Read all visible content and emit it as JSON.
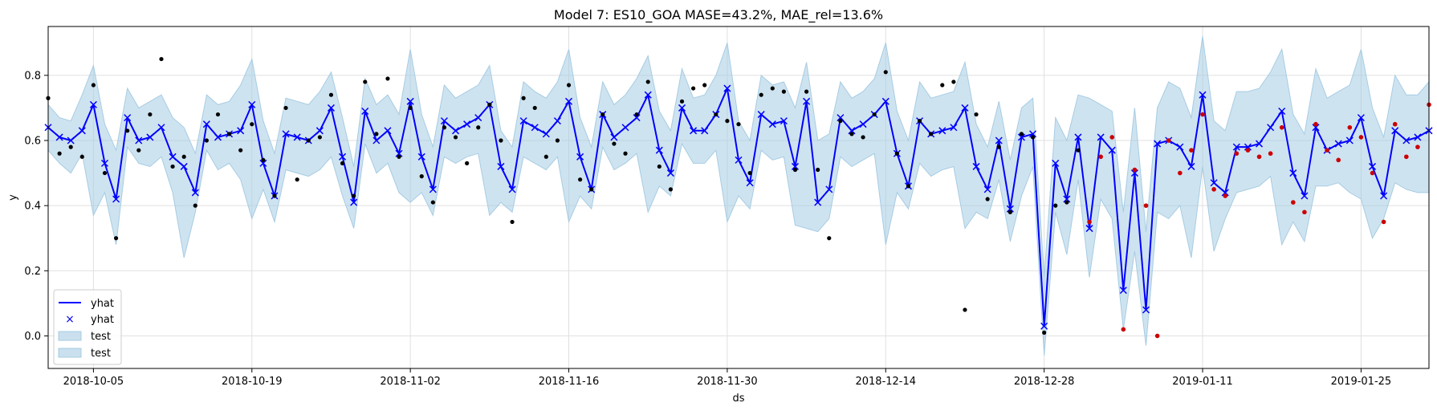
{
  "chart_data": {
    "type": "line",
    "title": "Model 7: ES10_GOA MASE=43.2%, MAE_rel=13.6%",
    "xlabel": "ds",
    "ylabel": "y",
    "x_range": [
      "2018-10-01",
      "2019-01-31"
    ],
    "ylim": [
      -0.1,
      0.95
    ],
    "x_ticks": [
      "2018-10-05",
      "2018-10-19",
      "2018-11-02",
      "2018-11-16",
      "2018-11-30",
      "2018-12-14",
      "2018-12-28",
      "2019-01-11",
      "2019-01-25"
    ],
    "y_ticks": [
      0.0,
      0.2,
      0.4,
      0.6,
      0.8
    ],
    "grid": true,
    "legend_position": "lower-left",
    "legend": [
      {
        "label": "yhat",
        "kind": "line"
      },
      {
        "label": "yhat",
        "kind": "marker"
      },
      {
        "label": "test",
        "kind": "band"
      },
      {
        "label": "test",
        "kind": "band"
      }
    ],
    "x_start": "2018-10-01",
    "yhat": [
      0.64,
      0.61,
      0.6,
      0.63,
      0.71,
      0.53,
      0.42,
      0.67,
      0.6,
      0.61,
      0.64,
      0.55,
      0.52,
      0.44,
      0.65,
      0.61,
      0.62,
      0.63,
      0.71,
      0.53,
      0.43,
      0.62,
      0.61,
      0.6,
      0.63,
      0.7,
      0.55,
      0.41,
      0.69,
      0.6,
      0.63,
      0.56,
      0.72,
      0.55,
      0.45,
      0.66,
      0.63,
      0.65,
      0.67,
      0.71,
      0.52,
      0.45,
      0.66,
      0.64,
      0.62,
      0.66,
      0.72,
      0.55,
      0.45,
      0.68,
      0.61,
      0.64,
      0.67,
      0.74,
      0.57,
      0.5,
      0.7,
      0.63,
      0.63,
      0.68,
      0.76,
      0.54,
      0.47,
      0.68,
      0.65,
      0.66,
      0.52,
      0.72,
      0.41,
      0.45,
      0.67,
      0.63,
      0.65,
      0.68,
      0.72,
      0.56,
      0.46,
      0.66,
      0.62,
      0.63,
      0.64,
      0.7,
      0.52,
      0.45,
      0.6,
      0.39,
      0.61,
      0.62,
      0.03,
      0.53,
      0.42,
      0.61,
      0.33,
      0.61,
      0.57,
      0.14,
      0.5,
      0.08,
      0.59,
      0.6,
      0.58,
      0.52,
      0.74,
      0.47,
      0.44,
      0.58,
      0.58,
      0.59,
      0.64,
      0.69,
      0.5,
      0.43,
      0.64,
      0.57,
      0.59,
      0.6,
      0.67,
      0.52,
      0.43,
      0.63,
      0.6,
      0.61,
      0.63
    ],
    "band_upper": [
      0.71,
      0.67,
      0.66,
      0.74,
      0.83,
      0.65,
      0.57,
      0.76,
      0.7,
      0.72,
      0.74,
      0.67,
      0.64,
      0.56,
      0.74,
      0.71,
      0.72,
      0.77,
      0.85,
      0.66,
      0.56,
      0.73,
      0.72,
      0.71,
      0.75,
      0.81,
      0.67,
      0.52,
      0.79,
      0.71,
      0.74,
      0.68,
      0.88,
      0.68,
      0.58,
      0.77,
      0.73,
      0.75,
      0.77,
      0.83,
      0.63,
      0.58,
      0.78,
      0.75,
      0.73,
      0.78,
      0.88,
      0.67,
      0.58,
      0.78,
      0.71,
      0.74,
      0.79,
      0.86,
      0.69,
      0.63,
      0.82,
      0.73,
      0.74,
      0.8,
      0.9,
      0.66,
      0.6,
      0.8,
      0.77,
      0.78,
      0.7,
      0.84,
      0.6,
      0.62,
      0.78,
      0.73,
      0.75,
      0.79,
      0.9,
      0.69,
      0.6,
      0.78,
      0.73,
      0.74,
      0.75,
      0.84,
      0.65,
      0.58,
      0.72,
      0.54,
      0.7,
      0.73,
      0.18,
      0.67,
      0.6,
      0.74,
      0.73,
      0.71,
      0.69,
      0.38,
      0.7,
      0.32,
      0.7,
      0.78,
      0.76,
      0.67,
      0.92,
      0.66,
      0.63,
      0.75,
      0.75,
      0.76,
      0.81,
      0.88,
      0.68,
      0.62,
      0.82,
      0.73,
      0.75,
      0.77,
      0.88,
      0.7,
      0.61,
      0.8,
      0.74,
      0.74,
      0.78
    ],
    "band_lower": [
      0.57,
      0.53,
      0.5,
      0.56,
      0.37,
      0.44,
      0.28,
      0.58,
      0.53,
      0.52,
      0.55,
      0.44,
      0.24,
      0.38,
      0.57,
      0.51,
      0.53,
      0.48,
      0.36,
      0.45,
      0.35,
      0.51,
      0.5,
      0.49,
      0.51,
      0.55,
      0.43,
      0.33,
      0.59,
      0.5,
      0.53,
      0.44,
      0.41,
      0.44,
      0.37,
      0.55,
      0.53,
      0.55,
      0.56,
      0.37,
      0.41,
      0.38,
      0.55,
      0.53,
      0.51,
      0.55,
      0.35,
      0.43,
      0.39,
      0.58,
      0.51,
      0.53,
      0.56,
      0.38,
      0.46,
      0.43,
      0.59,
      0.53,
      0.53,
      0.57,
      0.35,
      0.43,
      0.39,
      0.57,
      0.54,
      0.55,
      0.34,
      0.33,
      0.32,
      0.36,
      0.55,
      0.52,
      0.54,
      0.56,
      0.28,
      0.44,
      0.39,
      0.53,
      0.49,
      0.51,
      0.52,
      0.33,
      0.38,
      0.36,
      0.48,
      0.29,
      0.43,
      0.52,
      -0.06,
      0.38,
      0.25,
      0.48,
      0.18,
      0.42,
      0.36,
      0.02,
      0.26,
      -0.03,
      0.38,
      0.36,
      0.4,
      0.24,
      0.52,
      0.26,
      0.36,
      0.44,
      0.45,
      0.46,
      0.49,
      0.28,
      0.35,
      0.29,
      0.46,
      0.46,
      0.47,
      0.44,
      0.42,
      0.3,
      0.36,
      0.47,
      0.45,
      0.44,
      0.44
    ],
    "train_actuals": [
      [
        "2018-10-01",
        0.73
      ],
      [
        "2018-10-02",
        0.56
      ],
      [
        "2018-10-03",
        0.58
      ],
      [
        "2018-10-04",
        0.55
      ],
      [
        "2018-10-05",
        0.77
      ],
      [
        "2018-10-06",
        0.5
      ],
      [
        "2018-10-07",
        0.3
      ],
      [
        "2018-10-08",
        0.63
      ],
      [
        "2018-10-09",
        0.57
      ],
      [
        "2018-10-10",
        0.68
      ],
      [
        "2018-10-11",
        0.85
      ],
      [
        "2018-10-12",
        0.52
      ],
      [
        "2018-10-13",
        0.55
      ],
      [
        "2018-10-14",
        0.4
      ],
      [
        "2018-10-15",
        0.6
      ],
      [
        "2018-10-16",
        0.68
      ],
      [
        "2018-10-17",
        0.62
      ],
      [
        "2018-10-18",
        0.57
      ],
      [
        "2018-10-19",
        0.65
      ],
      [
        "2018-10-20",
        0.54
      ],
      [
        "2018-10-21",
        0.43
      ],
      [
        "2018-10-22",
        0.7
      ],
      [
        "2018-10-23",
        0.48
      ],
      [
        "2018-10-24",
        0.6
      ],
      [
        "2018-10-25",
        0.61
      ],
      [
        "2018-10-26",
        0.74
      ],
      [
        "2018-10-27",
        0.53
      ],
      [
        "2018-10-28",
        0.43
      ],
      [
        "2018-10-29",
        0.78
      ],
      [
        "2018-10-30",
        0.62
      ],
      [
        "2018-10-31",
        0.79
      ],
      [
        "2018-11-01",
        0.55
      ],
      [
        "2018-11-02",
        0.7
      ],
      [
        "2018-11-03",
        0.49
      ],
      [
        "2018-11-04",
        0.41
      ],
      [
        "2018-11-05",
        0.64
      ],
      [
        "2018-11-06",
        0.61
      ],
      [
        "2018-11-07",
        0.53
      ],
      [
        "2018-11-08",
        0.64
      ],
      [
        "2018-11-09",
        0.71
      ],
      [
        "2018-11-10",
        0.6
      ],
      [
        "2018-11-11",
        0.35
      ],
      [
        "2018-11-12",
        0.73
      ],
      [
        "2018-11-13",
        0.7
      ],
      [
        "2018-11-14",
        0.55
      ],
      [
        "2018-11-15",
        0.6
      ],
      [
        "2018-11-16",
        0.77
      ],
      [
        "2018-11-17",
        0.48
      ],
      [
        "2018-11-18",
        0.45
      ],
      [
        "2018-11-19",
        0.68
      ],
      [
        "2018-11-20",
        0.59
      ],
      [
        "2018-11-21",
        0.56
      ],
      [
        "2018-11-22",
        0.68
      ],
      [
        "2018-11-23",
        0.78
      ],
      [
        "2018-11-24",
        0.52
      ],
      [
        "2018-11-25",
        0.45
      ],
      [
        "2018-11-26",
        0.72
      ],
      [
        "2018-11-27",
        0.76
      ],
      [
        "2018-11-28",
        0.77
      ],
      [
        "2018-11-29",
        0.68
      ],
      [
        "2018-11-30",
        0.66
      ],
      [
        "2018-12-01",
        0.65
      ],
      [
        "2018-12-02",
        0.5
      ],
      [
        "2018-12-03",
        0.74
      ],
      [
        "2018-12-04",
        0.76
      ],
      [
        "2018-12-05",
        0.75
      ],
      [
        "2018-12-06",
        0.51
      ],
      [
        "2018-12-07",
        0.75
      ],
      [
        "2018-12-08",
        0.51
      ],
      [
        "2018-12-09",
        0.3
      ],
      [
        "2018-12-10",
        0.66
      ],
      [
        "2018-12-11",
        0.62
      ],
      [
        "2018-12-12",
        0.61
      ],
      [
        "2018-12-13",
        0.68
      ],
      [
        "2018-12-14",
        0.81
      ],
      [
        "2018-12-15",
        0.56
      ],
      [
        "2018-12-16",
        0.46
      ],
      [
        "2018-12-17",
        0.66
      ],
      [
        "2018-12-18",
        0.62
      ],
      [
        "2018-12-19",
        0.77
      ],
      [
        "2018-12-20",
        0.78
      ],
      [
        "2018-12-21",
        0.08
      ],
      [
        "2018-12-22",
        0.68
      ],
      [
        "2018-12-23",
        0.42
      ],
      [
        "2018-12-24",
        0.58
      ],
      [
        "2018-12-25",
        0.38
      ],
      [
        "2018-12-26",
        0.62
      ],
      [
        "2018-12-27",
        0.61
      ],
      [
        "2018-12-28",
        0.01
      ],
      [
        "2018-12-29",
        0.4
      ],
      [
        "2018-12-30",
        0.41
      ],
      [
        "2018-12-31",
        0.57
      ]
    ],
    "test_actuals": [
      [
        "2019-01-01",
        0.35
      ],
      [
        "2019-01-02",
        0.55
      ],
      [
        "2019-01-03",
        0.61
      ],
      [
        "2019-01-04",
        0.02
      ],
      [
        "2019-01-05",
        0.51
      ],
      [
        "2019-01-06",
        0.4
      ],
      [
        "2019-01-07",
        0.0
      ],
      [
        "2019-01-08",
        0.6
      ],
      [
        "2019-01-09",
        0.5
      ],
      [
        "2019-01-10",
        0.57
      ],
      [
        "2019-01-11",
        0.68
      ],
      [
        "2019-01-12",
        0.45
      ],
      [
        "2019-01-13",
        0.43
      ],
      [
        "2019-01-14",
        0.56
      ],
      [
        "2019-01-15",
        0.57
      ],
      [
        "2019-01-16",
        0.55
      ],
      [
        "2019-01-17",
        0.56
      ],
      [
        "2019-01-18",
        0.64
      ],
      [
        "2019-01-19",
        0.41
      ],
      [
        "2019-01-20",
        0.38
      ],
      [
        "2019-01-21",
        0.65
      ],
      [
        "2019-01-22",
        0.57
      ],
      [
        "2019-01-23",
        0.54
      ],
      [
        "2019-01-24",
        0.64
      ],
      [
        "2019-01-25",
        0.61
      ],
      [
        "2019-01-26",
        0.5
      ],
      [
        "2019-01-27",
        0.35
      ],
      [
        "2019-01-28",
        0.65
      ],
      [
        "2019-01-29",
        0.55
      ],
      [
        "2019-01-30",
        0.58
      ],
      [
        "2019-01-31",
        0.71
      ]
    ],
    "colors": {
      "line": "#0000ff",
      "band": "#a6cce3",
      "train_dot": "#000000",
      "test_dot": "#cc0000",
      "grid": "#e0e0e0"
    }
  }
}
